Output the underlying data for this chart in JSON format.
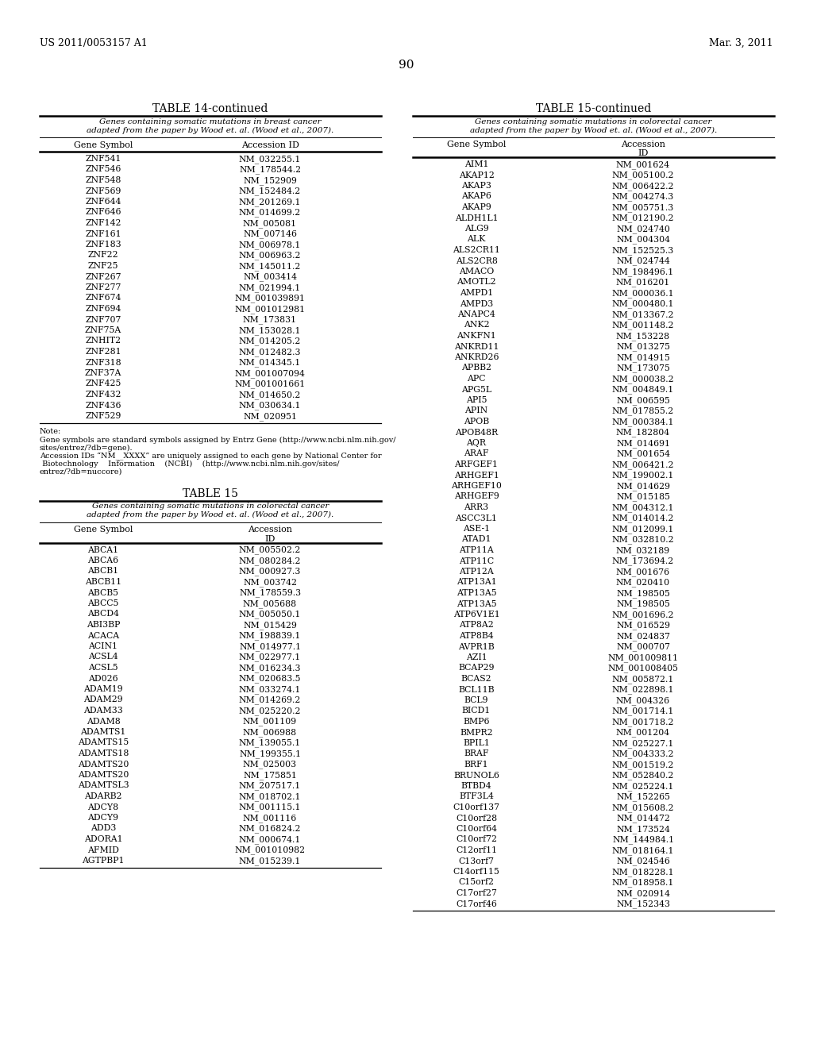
{
  "header_left": "US 2011/0053157 A1",
  "header_right": "Mar. 3, 2011",
  "page_number": "90",
  "table14_title": "TABLE 14-continued",
  "table14_subtitle": "Genes containing somatic mutations in breast cancer\nadapted from the paper by Wood et. al. (Wood et al., 2007).",
  "table14_col1": "Gene Symbol",
  "table14_col2": "Accession ID",
  "table14_data": [
    [
      "ZNF541",
      "NM_032255.1"
    ],
    [
      "ZNF546",
      "NM_178544.2"
    ],
    [
      "ZNF548",
      "NM_152909"
    ],
    [
      "ZNF569",
      "NM_152484.2"
    ],
    [
      "ZNF644",
      "NM_201269.1"
    ],
    [
      "ZNF646",
      "NM_014699.2"
    ],
    [
      "ZNF142",
      "NM_005081"
    ],
    [
      "ZNF161",
      "NM_007146"
    ],
    [
      "ZNF183",
      "NM_006978.1"
    ],
    [
      "ZNF22",
      "NM_006963.2"
    ],
    [
      "ZNF25",
      "NM_145011.2"
    ],
    [
      "ZNF267",
      "NM_003414"
    ],
    [
      "ZNF277",
      "NM_021994.1"
    ],
    [
      "ZNF674",
      "NM_001039891"
    ],
    [
      "ZNF694",
      "NM_001012981"
    ],
    [
      "ZNF707",
      "NM_173831"
    ],
    [
      "ZNF75A",
      "NM_153028.1"
    ],
    [
      "ZNHIT2",
      "NM_014205.2"
    ],
    [
      "ZNF281",
      "NM_012482.3"
    ],
    [
      "ZNF318",
      "NM_014345.1"
    ],
    [
      "ZNF37A",
      "NM_001007094"
    ],
    [
      "ZNF425",
      "NM_001001661"
    ],
    [
      "ZNF432",
      "NM_014650.2"
    ],
    [
      "ZNF436",
      "NM_030634.1"
    ],
    [
      "ZNF529",
      "NM_020951"
    ]
  ],
  "table14_note_line1": "Note:",
  "table14_note_line2": "Gene symbols are standard symbols assigned by Entrz Gene (http://www.ncbi.nlm.nih.gov/",
  "table14_note_line3": "sites/entrez/?db=gene).",
  "table14_note_line4": "Accession IDs “NM__XXXX” are uniquely assigned to each gene by National Center for",
  "table14_note_line5": " Biotechnology    Information    (NCBI)    (http://www.ncbi.nlm.nih.gov/sites/",
  "table14_note_line6": "entrez/?db=nuccore)",
  "table15_new_title": "TABLE 15",
  "table15_new_subtitle": "Genes containing somatic mutations in colorectal cancer\nadapted from the paper by Wood et. al. (Wood et al., 2007).",
  "table15_new_col1": "Gene Symbol",
  "table15_new_col2_line1": "Accession",
  "table15_new_col2_line2": "ID",
  "table15_new_data": [
    [
      "ABCA1",
      "NM_005502.2"
    ],
    [
      "ABCA6",
      "NM_080284.2"
    ],
    [
      "ABCB1",
      "NM_000927.3"
    ],
    [
      "ABCB11",
      "NM_003742"
    ],
    [
      "ABCB5",
      "NM_178559.3"
    ],
    [
      "ABCC5",
      "NM_005688"
    ],
    [
      "ABCD4",
      "NM_005050.1"
    ],
    [
      "ABI3BP",
      "NM_015429"
    ],
    [
      "ACACA",
      "NM_198839.1"
    ],
    [
      "ACIN1",
      "NM_014977.1"
    ],
    [
      "ACSL4",
      "NM_022977.1"
    ],
    [
      "ACSL5",
      "NM_016234.3"
    ],
    [
      "AD026",
      "NM_020683.5"
    ],
    [
      "ADAM19",
      "NM_033274.1"
    ],
    [
      "ADAM29",
      "NM_014269.2"
    ],
    [
      "ADAM33",
      "NM_025220.2"
    ],
    [
      "ADAM8",
      "NM_001109"
    ],
    [
      "ADAMTS1",
      "NM_006988"
    ],
    [
      "ADAMTS15",
      "NM_139055.1"
    ],
    [
      "ADAMTS18",
      "NM_199355.1"
    ],
    [
      "ADAMTS20",
      "NM_025003"
    ],
    [
      "ADAMTS20",
      "NM_175851"
    ],
    [
      "ADAMTSL3",
      "NM_207517.1"
    ],
    [
      "ADARB2",
      "NM_018702.1"
    ],
    [
      "ADCY8",
      "NM_001115.1"
    ],
    [
      "ADCY9",
      "NM_001116"
    ],
    [
      "ADD3",
      "NM_016824.2"
    ],
    [
      "ADORA1",
      "NM_000674.1"
    ],
    [
      "AFMID",
      "NM_001010982"
    ],
    [
      "AGTPBP1",
      "NM_015239.1"
    ]
  ],
  "table15cont_title": "TABLE 15-continued",
  "table15cont_subtitle": "Genes containing somatic mutations in colorectal cancer\nadapted from the paper by Wood et. al. (Wood et al., 2007).",
  "table15cont_col1": "Gene Symbol",
  "table15cont_col2_line1": "Accession",
  "table15cont_col2_line2": "ID",
  "table15cont_data": [
    [
      "AIM1",
      "NM_001624"
    ],
    [
      "AKAP12",
      "NM_005100.2"
    ],
    [
      "AKAP3",
      "NM_006422.2"
    ],
    [
      "AKAP6",
      "NM_004274.3"
    ],
    [
      "AKAP9",
      "NM_005751.3"
    ],
    [
      "ALDH1L1",
      "NM_012190.2"
    ],
    [
      "ALG9",
      "NM_024740"
    ],
    [
      "ALK",
      "NM_004304"
    ],
    [
      "ALS2CR11",
      "NM_152525.3"
    ],
    [
      "ALS2CR8",
      "NM_024744"
    ],
    [
      "AMACO",
      "NM_198496.1"
    ],
    [
      "AMOTL2",
      "NM_016201"
    ],
    [
      "AMPD1",
      "NM_000036.1"
    ],
    [
      "AMPD3",
      "NM_000480.1"
    ],
    [
      "ANAPC4",
      "NM_013367.2"
    ],
    [
      "ANK2",
      "NM_001148.2"
    ],
    [
      "ANKFN1",
      "NM_153228"
    ],
    [
      "ANKRD11",
      "NM_013275"
    ],
    [
      "ANKRD26",
      "NM_014915"
    ],
    [
      "APBB2",
      "NM_173075"
    ],
    [
      "APC",
      "NM_000038.2"
    ],
    [
      "APG5L",
      "NM_004849.1"
    ],
    [
      "API5",
      "NM_006595"
    ],
    [
      "APIN",
      "NM_017855.2"
    ],
    [
      "APOB",
      "NM_000384.1"
    ],
    [
      "APOB48R",
      "NM_182804"
    ],
    [
      "AQR",
      "NM_014691"
    ],
    [
      "ARAF",
      "NM_001654"
    ],
    [
      "ARFGEF1",
      "NM_006421.2"
    ],
    [
      "ARHGEF1",
      "NM_199002.1"
    ],
    [
      "ARHGEF10",
      "NM_014629"
    ],
    [
      "ARHGEF9",
      "NM_015185"
    ],
    [
      "ARR3",
      "NM_004312.1"
    ],
    [
      "ASCC3L1",
      "NM_014014.2"
    ],
    [
      "ASE-1",
      "NM_012099.1"
    ],
    [
      "ATAD1",
      "NM_032810.2"
    ],
    [
      "ATP11A",
      "NM_032189"
    ],
    [
      "ATP11C",
      "NM_173694.2"
    ],
    [
      "ATP12A",
      "NM_001676"
    ],
    [
      "ATP13A1",
      "NM_020410"
    ],
    [
      "ATP13A5",
      "NM_198505"
    ],
    [
      "ATP13A5",
      "NM_198505"
    ],
    [
      "ATP6V1E1",
      "NM_001696.2"
    ],
    [
      "ATP8A2",
      "NM_016529"
    ],
    [
      "ATP8B4",
      "NM_024837"
    ],
    [
      "AVPR1B",
      "NM_000707"
    ],
    [
      "AZI1",
      "NM_001009811"
    ],
    [
      "BCAP29",
      "NM_001008405"
    ],
    [
      "BCAS2",
      "NM_005872.1"
    ],
    [
      "BCL11B",
      "NM_022898.1"
    ],
    [
      "BCL9",
      "NM_004326"
    ],
    [
      "BICD1",
      "NM_001714.1"
    ],
    [
      "BMP6",
      "NM_001718.2"
    ],
    [
      "BMPR2",
      "NM_001204"
    ],
    [
      "BPIL1",
      "NM_025227.1"
    ],
    [
      "BRAF",
      "NM_004333.2"
    ],
    [
      "BRF1",
      "NM_001519.2"
    ],
    [
      "BRUNOL6",
      "NM_052840.2"
    ],
    [
      "BTBD4",
      "NM_025224.1"
    ],
    [
      "BTF3L4",
      "NM_152265"
    ],
    [
      "C10orf137",
      "NM_015608.2"
    ],
    [
      "C10orf28",
      "NM_014472"
    ],
    [
      "C10orf64",
      "NM_173524"
    ],
    [
      "C10orf72",
      "NM_144984.1"
    ],
    [
      "C12orf11",
      "NM_018164.1"
    ],
    [
      "C13orf7",
      "NM_024546"
    ],
    [
      "C14orf115",
      "NM_018228.1"
    ],
    [
      "C15orf2",
      "NM_018958.1"
    ],
    [
      "C17orf27",
      "NM_020914"
    ],
    [
      "C17orf46",
      "NM_152343"
    ]
  ]
}
